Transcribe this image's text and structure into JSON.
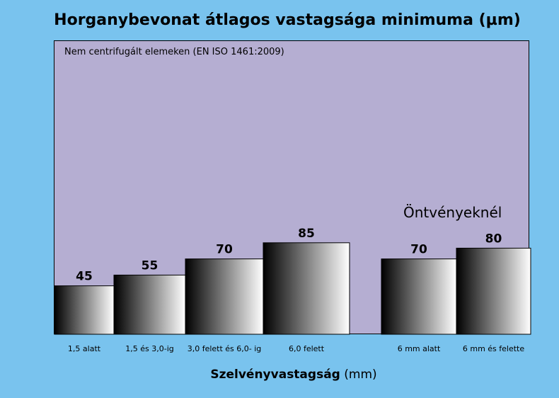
{
  "chart_data": {
    "type": "bar",
    "title": "Horganybevonat átlagos vastagsága minimuma (µm)",
    "subtitle": "Nem centrifugált elemeken (EN ISO 1461:2009)",
    "group_annotation": "Öntvényeknél",
    "xlabel_bold": "Szelvényvastagság",
    "xlabel_unit": "(mm)",
    "ylabel": "",
    "ylim": [
      0,
      100
    ],
    "grid": false,
    "categories": [
      "1,5 alatt",
      "1,5 és 3,0-ig",
      "3,0 felett és 6,0- ig",
      "6,0 felett",
      "6 mm alatt",
      "6 mm és felette"
    ],
    "values": [
      45,
      55,
      70,
      85,
      70,
      80
    ],
    "bar_gradient": [
      "#000000",
      "#ffffff"
    ],
    "colors": {
      "background": "#79c3ee",
      "plot_area": "#b5aed2"
    }
  }
}
